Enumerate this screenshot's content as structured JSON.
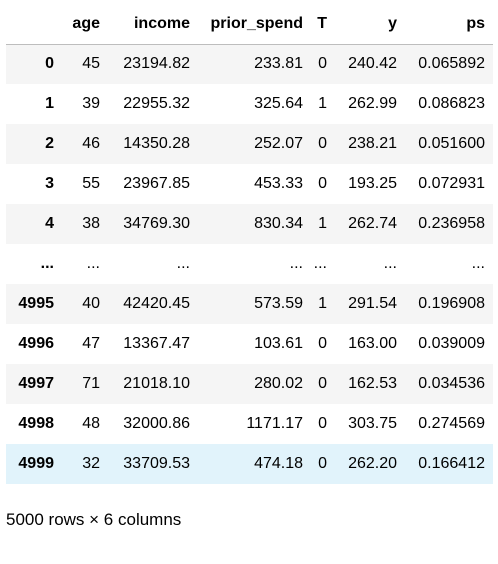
{
  "table": {
    "index_header": "",
    "columns": [
      "age",
      "income",
      "prior_spend",
      "T",
      "y",
      "ps"
    ],
    "rows": [
      {
        "index": "0",
        "cells": [
          "45",
          "23194.82",
          "233.81",
          "0",
          "240.42",
          "0.065892"
        ]
      },
      {
        "index": "1",
        "cells": [
          "39",
          "22955.32",
          "325.64",
          "1",
          "262.99",
          "0.086823"
        ]
      },
      {
        "index": "2",
        "cells": [
          "46",
          "14350.28",
          "252.07",
          "0",
          "238.21",
          "0.051600"
        ]
      },
      {
        "index": "3",
        "cells": [
          "55",
          "23967.85",
          "453.33",
          "0",
          "193.25",
          "0.072931"
        ]
      },
      {
        "index": "4",
        "cells": [
          "38",
          "34769.30",
          "830.34",
          "1",
          "262.74",
          "0.236958"
        ]
      },
      {
        "index": "...",
        "cells": [
          "...",
          "...",
          "...",
          "...",
          "...",
          "..."
        ]
      },
      {
        "index": "4995",
        "cells": [
          "40",
          "42420.45",
          "573.59",
          "1",
          "291.54",
          "0.196908"
        ]
      },
      {
        "index": "4996",
        "cells": [
          "47",
          "13367.47",
          "103.61",
          "0",
          "163.00",
          "0.039009"
        ]
      },
      {
        "index": "4997",
        "cells": [
          "71",
          "21018.10",
          "280.02",
          "0",
          "162.53",
          "0.034536"
        ]
      },
      {
        "index": "4998",
        "cells": [
          "48",
          "32000.86",
          "1171.17",
          "0",
          "303.75",
          "0.274569"
        ]
      },
      {
        "index": "4999",
        "cells": [
          "32",
          "33709.53",
          "474.18",
          "0",
          "262.20",
          "0.166412"
        ]
      }
    ]
  },
  "footer": "5000 rows × 6 columns",
  "colors": {
    "stripe": "#f5f5f5",
    "hover_row": "#e1f3fb",
    "header_border": "#bdbdbd"
  }
}
